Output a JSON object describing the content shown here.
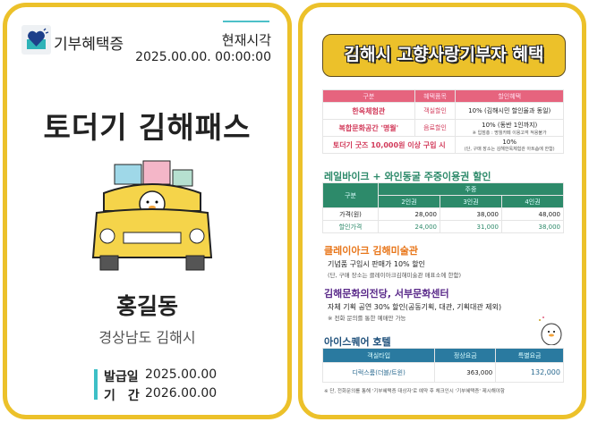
{
  "pass": {
    "brand": "기부혜택증",
    "now_label": "현재시각",
    "now_value": "2025.00.00. 00:00:00",
    "title": "토더기 김해패스",
    "name": "홍길동",
    "region": "경상남도 김해시",
    "issue_label": "발급일",
    "issue_date": "2025.00.00",
    "period_label": "기　간",
    "period_date": "2026.00.00"
  },
  "benefits": {
    "banner": "김해시 고향사랑기부자 혜택",
    "t1": {
      "headers": [
        "구분",
        "혜택품목",
        "할인혜택"
      ],
      "rows": [
        {
          "name": "한옥체험관",
          "item": "객실할인",
          "benefit": "10% (김해시민 할인율과 동일)",
          "note": ""
        },
        {
          "name": "복합문화공간 '명월'",
          "item": "음료할인",
          "benefit": "10% (동반 1인까지)",
          "note": "※ 입점총 : 명월카페 이용고객 적용불가"
        },
        {
          "name": "토더기 굿즈 10,000원 이상 구입 시",
          "item": "",
          "benefit": "10%",
          "note": "(단, 구매 장소는 김해한옥체험관 아트숍에 한함)"
        }
      ]
    },
    "t2": {
      "title": "레일바이크 + 와인동굴 주중이용권 할인",
      "h_category": "구분",
      "h_weekday": "주중",
      "cols": [
        "2인권",
        "3인권",
        "4인권"
      ],
      "rows": [
        {
          "label": "가격(원)",
          "values": [
            "28,000",
            "38,000",
            "48,000"
          ]
        },
        {
          "label": "할인가격",
          "values": [
            "24,000",
            "31,000",
            "38,000"
          ]
        }
      ]
    },
    "s3": {
      "title": "클레이아크 김해미술관",
      "line": "기념품 구입시 판매가 10% 할인",
      "note": "(단, 구매 장소는 클레이아크김해미술관 매표소에 한함)"
    },
    "s4": {
      "title": "김해문화의전당, 서부문화센터",
      "line": "자체 기획 공연 30% 할인(공동기획, 대관, 기획대관 제외)",
      "note": "※ 전화 문의를 통한 예매만 가능"
    },
    "t5": {
      "title": "아이스퀘어 호텔",
      "headers": [
        "객실타입",
        "정상요금",
        "특별요금"
      ],
      "row": [
        "디럭스룸(더블/트윈)",
        "363,000",
        "132,000"
      ],
      "note": "※ 단, 전화문의를 통해 '기부혜택증 대상자'로 예약 후 체크인시 '기부혜택증' 제시해야함"
    }
  },
  "colors": {
    "border": "#ecc12a",
    "accent_teal": "#3dbfc6",
    "pink": "#e6647e",
    "green": "#2d8a6a",
    "orange": "#e8761a",
    "purple": "#5a2a8a",
    "blue": "#2a7aa0"
  }
}
